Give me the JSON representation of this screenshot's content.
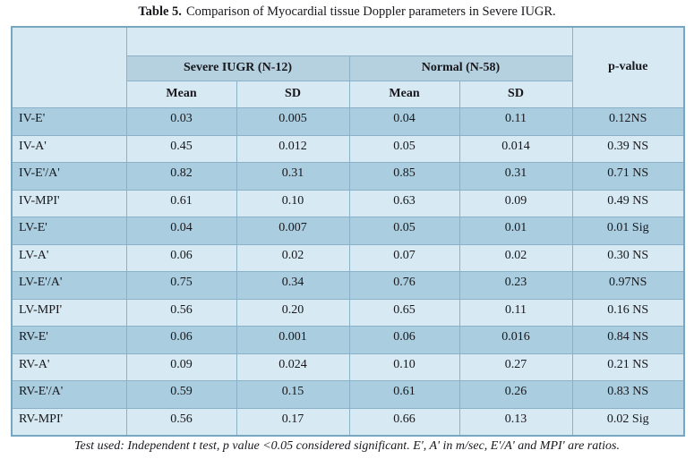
{
  "caption": {
    "label": "Table 5.",
    "text": "Comparison of Myocardial tissue Doppler parameters in Severe IUGR."
  },
  "table": {
    "group_headers": [
      "Severe IUGR (N-12)",
      "Normal (N-58)"
    ],
    "p_value_header": "p-value",
    "sub_headers": [
      "Mean",
      "SD",
      "Mean",
      "SD"
    ],
    "rows": [
      {
        "param": "IV-E'",
        "values": [
          "0.03",
          "0.005",
          "0.04",
          "0.11",
          "0.12NS"
        ]
      },
      {
        "param": "IV-A'",
        "values": [
          "0.45",
          "0.012",
          "0.05",
          "0.014",
          "0.39 NS"
        ]
      },
      {
        "param": "IV-E'/A'",
        "values": [
          "0.82",
          "0.31",
          "0.85",
          "0.31",
          "0.71 NS"
        ]
      },
      {
        "param": "IV-MPI'",
        "values": [
          "0.61",
          "0.10",
          "0.63",
          "0.09",
          "0.49 NS"
        ]
      },
      {
        "param": "LV-E'",
        "values": [
          "0.04",
          "0.007",
          "0.05",
          "0.01",
          "0.01 Sig"
        ]
      },
      {
        "param": "LV-A'",
        "values": [
          "0.06",
          "0.02",
          "0.07",
          "0.02",
          "0.30 NS"
        ]
      },
      {
        "param": "LV-E'/A'",
        "values": [
          "0.75",
          "0.34",
          "0.76",
          "0.23",
          "0.97NS"
        ]
      },
      {
        "param": "LV-MPI'",
        "values": [
          "0.56",
          "0.20",
          "0.65",
          "0.11",
          "0.16 NS"
        ]
      },
      {
        "param": "RV-E'",
        "values": [
          "0.06",
          "0.001",
          "0.06",
          "0.016",
          "0.84 NS"
        ]
      },
      {
        "param": "RV-A'",
        "values": [
          "0.09",
          "0.024",
          "0.10",
          "0.27",
          "0.21 NS"
        ]
      },
      {
        "param": "RV-E'/A'",
        "values": [
          "0.59",
          "0.15",
          "0.61",
          "0.26",
          "0.83 NS"
        ]
      },
      {
        "param": "RV-MPI'",
        "values": [
          "0.56",
          "0.17",
          "0.66",
          "0.13",
          "0.02 Sig"
        ]
      }
    ]
  },
  "footnote": "Test used: Independent t test, p value <0.05 considered significant. E', A' in m/sec, E'/A' and MPI' are ratios.",
  "colors": {
    "light": "#d7e9f2",
    "dark": "#aacee0",
    "band": "#b5d1df",
    "inner": "#8ab1c7",
    "outer": "#77a6c0",
    "text": "#17171c"
  }
}
